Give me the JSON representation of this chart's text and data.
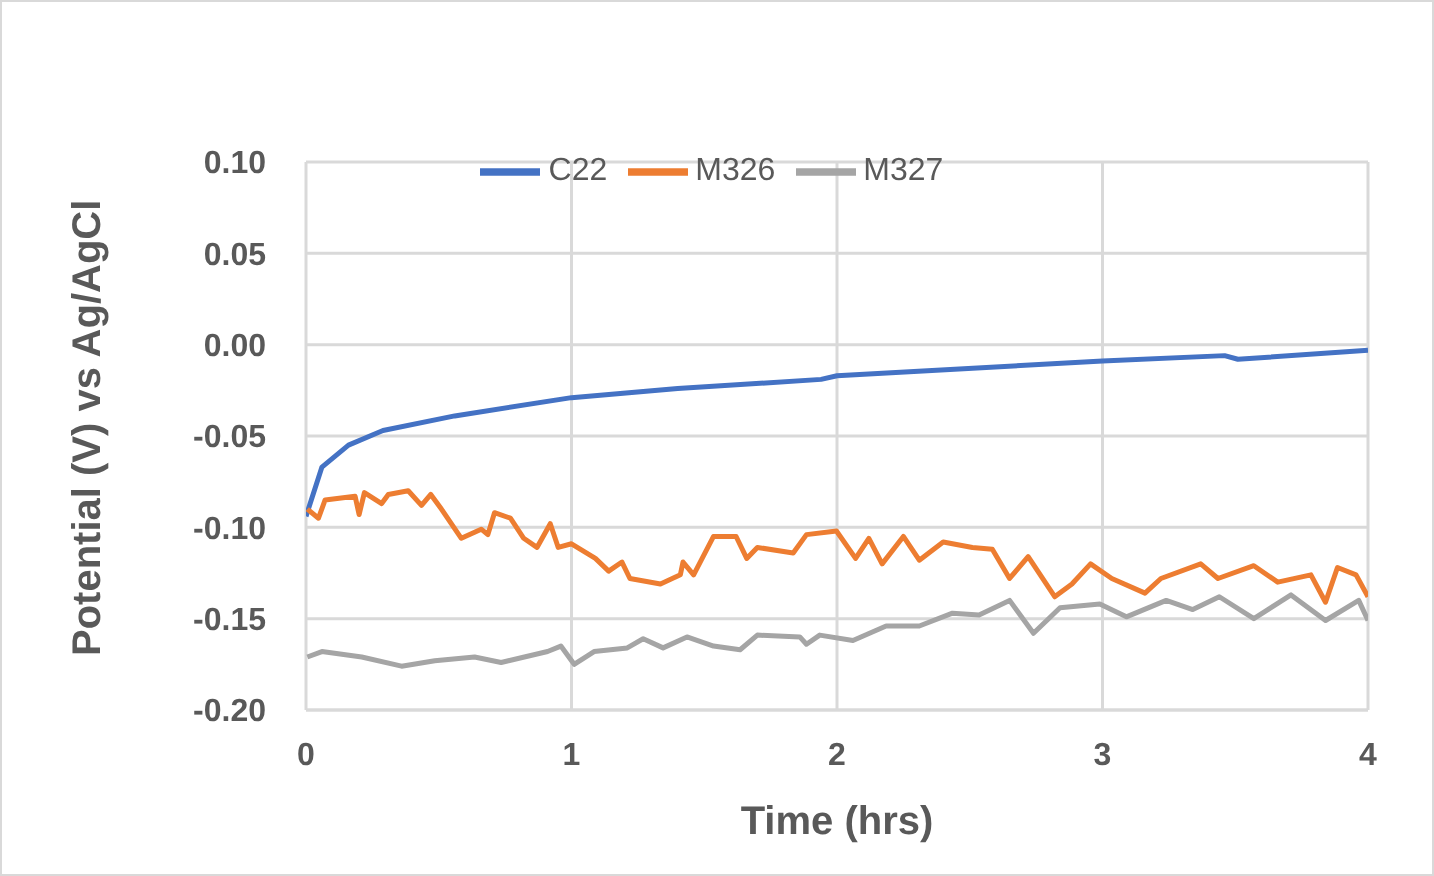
{
  "chart_data": {
    "type": "line",
    "xlabel": "Time (hrs)",
    "ylabel": "Potential (V) vs Ag/AgCl",
    "xlim": [
      0,
      4
    ],
    "xticks": [
      0,
      1,
      2,
      3,
      4
    ],
    "ylim": [
      -0.2,
      0.1
    ],
    "yticks": [
      {
        "value": -0.2,
        "label": "-0.20"
      },
      {
        "value": -0.15,
        "label": "-0.15"
      },
      {
        "value": -0.1,
        "label": "-0.10"
      },
      {
        "value": -0.05,
        "label": "-0.05"
      },
      {
        "value": 0,
        "label": "0.00"
      },
      {
        "value": 0.05,
        "label": "0.05"
      },
      {
        "value": 0.1,
        "label": "0.10"
      }
    ],
    "grid": true,
    "legend": "top",
    "marker": "none",
    "line_style": "solid",
    "series": [
      {
        "name": "C22",
        "color": "#4472c4",
        "x": [
          0,
          0.06,
          0.16,
          0.29,
          0.56,
          1.0,
          1.4,
          1.94,
          2.0,
          3.0,
          3.46,
          3.51,
          4.0
        ],
        "values": [
          -0.094,
          -0.067,
          -0.055,
          -0.047,
          -0.039,
          -0.029,
          -0.024,
          -0.019,
          -0.017,
          -0.009,
          -0.006,
          -0.008,
          -0.003
        ]
      },
      {
        "name": "M326",
        "color": "#ed7d31",
        "x": [
          0.005,
          0.047,
          0.072,
          0.185,
          0.2,
          0.22,
          0.285,
          0.31,
          0.385,
          0.435,
          0.47,
          0.51,
          0.585,
          0.66,
          0.685,
          0.71,
          0.77,
          0.82,
          0.87,
          0.92,
          0.95,
          1.0,
          1.09,
          1.14,
          1.19,
          1.22,
          1.335,
          1.41,
          1.42,
          1.46,
          1.535,
          1.62,
          1.66,
          1.7,
          1.835,
          1.885,
          1.998,
          2.07,
          2.12,
          2.17,
          2.25,
          2.31,
          2.4,
          2.51,
          2.585,
          2.65,
          2.72,
          2.82,
          2.885,
          2.955,
          3.035,
          3.16,
          3.22,
          3.37,
          3.435,
          3.57,
          3.66,
          3.785,
          3.84,
          3.885,
          3.955,
          4.0
        ],
        "values": [
          -0.09,
          -0.095,
          -0.085,
          -0.083,
          -0.093,
          -0.081,
          -0.087,
          -0.082,
          -0.08,
          -0.088,
          -0.082,
          -0.09,
          -0.106,
          -0.101,
          -0.104,
          -0.092,
          -0.095,
          -0.106,
          -0.111,
          -0.098,
          -0.111,
          -0.109,
          -0.117,
          -0.124,
          -0.119,
          -0.128,
          -0.131,
          -0.126,
          -0.119,
          -0.126,
          -0.105,
          -0.105,
          -0.117,
          -0.111,
          -0.114,
          -0.104,
          -0.102,
          -0.117,
          -0.106,
          -0.12,
          -0.105,
          -0.118,
          -0.108,
          -0.111,
          -0.112,
          -0.128,
          -0.116,
          -0.138,
          -0.131,
          -0.12,
          -0.128,
          -0.136,
          -0.128,
          -0.12,
          -0.128,
          -0.121,
          -0.13,
          -0.126,
          -0.141,
          -0.122,
          -0.126,
          -0.138
        ]
      },
      {
        "name": "M327",
        "color": "#a5a5a5",
        "x": [
          0.005,
          0.06,
          0.21,
          0.36,
          0.485,
          0.635,
          0.735,
          0.91,
          0.96,
          1.01,
          1.085,
          1.21,
          1.27,
          1.345,
          1.435,
          1.535,
          1.635,
          1.7,
          1.86,
          1.885,
          1.935,
          2.06,
          2.185,
          2.31,
          2.435,
          2.535,
          2.65,
          2.74,
          2.84,
          2.99,
          3.09,
          3.24,
          3.34,
          3.44,
          3.57,
          3.71,
          3.84,
          3.965,
          4.0
        ],
        "values": [
          -0.171,
          -0.168,
          -0.171,
          -0.176,
          -0.173,
          -0.171,
          -0.174,
          -0.168,
          -0.165,
          -0.175,
          -0.168,
          -0.166,
          -0.161,
          -0.166,
          -0.16,
          -0.165,
          -0.167,
          -0.159,
          -0.16,
          -0.164,
          -0.159,
          -0.162,
          -0.154,
          -0.154,
          -0.147,
          -0.148,
          -0.14,
          -0.158,
          -0.144,
          -0.142,
          -0.149,
          -0.14,
          -0.145,
          -0.138,
          -0.15,
          -0.137,
          -0.151,
          -0.14,
          -0.151
        ]
      }
    ]
  }
}
